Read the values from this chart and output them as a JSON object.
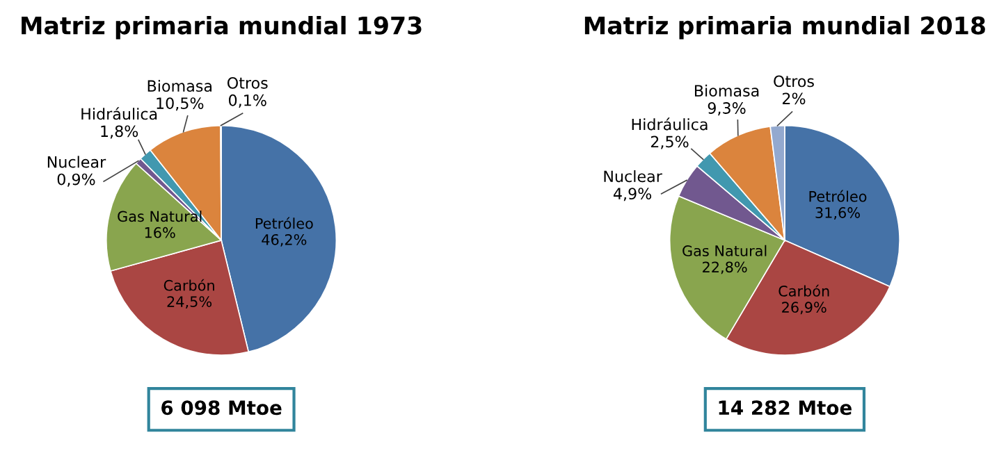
{
  "chart_data": [
    {
      "type": "pie",
      "title": "Matriz primaria mundial 1973",
      "categories": [
        "Petróleo",
        "Carbón",
        "Gas Natural",
        "Nuclear",
        "Hidráulica",
        "Biomasa",
        "Otros"
      ],
      "values": [
        46.2,
        24.5,
        16,
        0.9,
        1.8,
        10.5,
        0.1
      ],
      "value_labels": [
        "46,2%",
        "24,5%",
        "16%",
        "0,9%",
        "1,8%",
        "10,5%",
        "0,1%"
      ],
      "colors": [
        "#4572a7",
        "#aa4643",
        "#89a54e",
        "#71588f",
        "#4198af",
        "#db843d",
        "#93a9cf"
      ],
      "annotations": [
        "6 098 Mtoe"
      ]
    },
    {
      "type": "pie",
      "title": "Matriz primaria mundial 2018",
      "categories": [
        "Petróleo",
        "Carbón",
        "Gas Natural",
        "Nuclear",
        "Hidráulica",
        "Biomasa",
        "Otros"
      ],
      "values": [
        31.6,
        26.9,
        22.8,
        4.9,
        2.5,
        9.3,
        2
      ],
      "value_labels": [
        "31,6%",
        "26,9%",
        "22,8%",
        "4,9%",
        "2,5%",
        "9,3%",
        "2%"
      ],
      "colors": [
        "#4572a7",
        "#aa4643",
        "#89a54e",
        "#71588f",
        "#4198af",
        "#db843d",
        "#93a9cf"
      ],
      "annotations": [
        "14 282 Mtoe"
      ]
    }
  ]
}
